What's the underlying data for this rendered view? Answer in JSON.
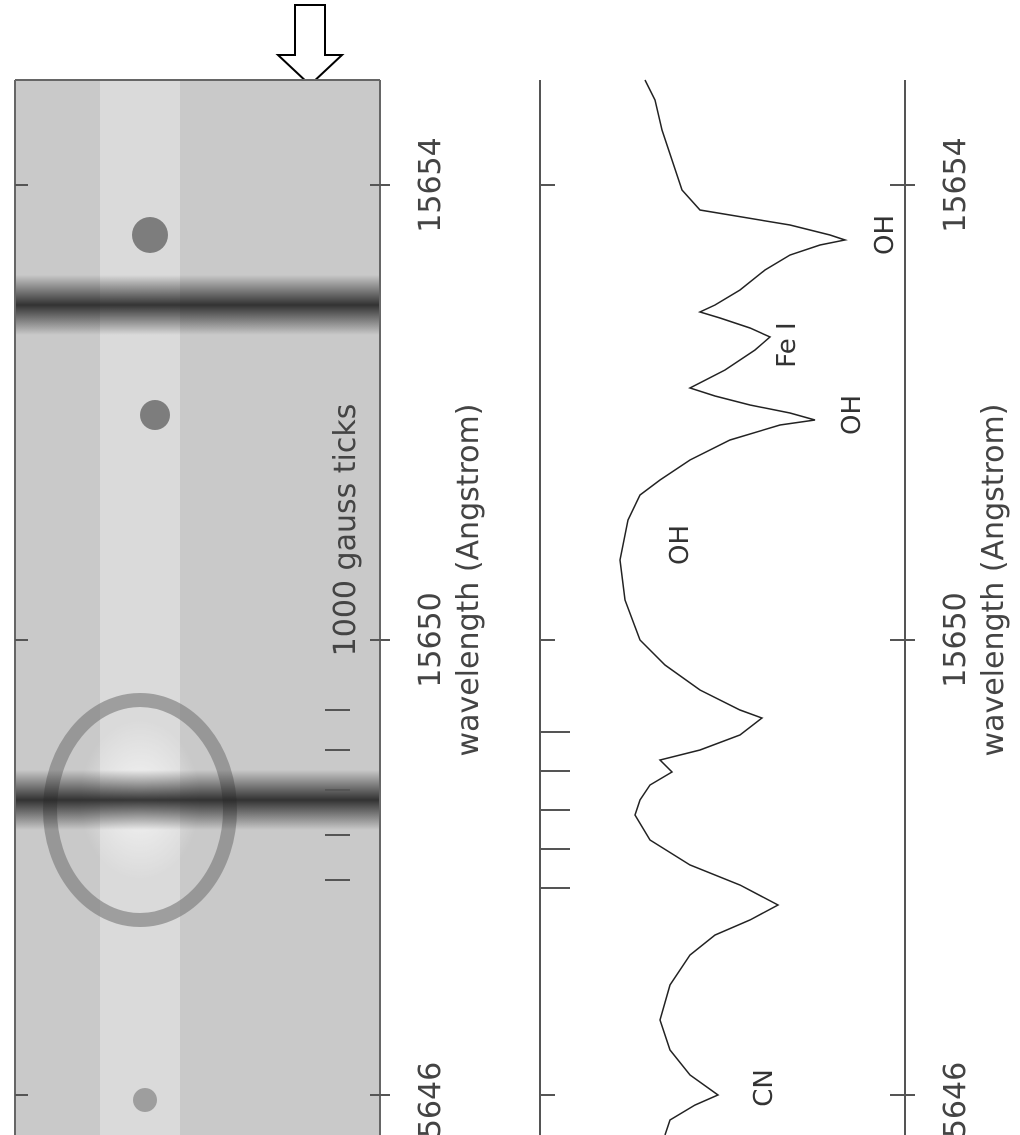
{
  "left_panel": {
    "gauss_label": "1000 gauss ticks",
    "tick_labels": [
      "15654",
      "15650",
      "5646"
    ],
    "axis_label": "wavelength (Angstrom)"
  },
  "right_panel": {
    "tick_labels": [
      "15654",
      "15650",
      "5646"
    ],
    "axis_label": "wavelength (Angstrom)",
    "annotations": [
      "OH",
      "Fe I",
      "OH",
      "OH",
      "CN"
    ]
  }
}
